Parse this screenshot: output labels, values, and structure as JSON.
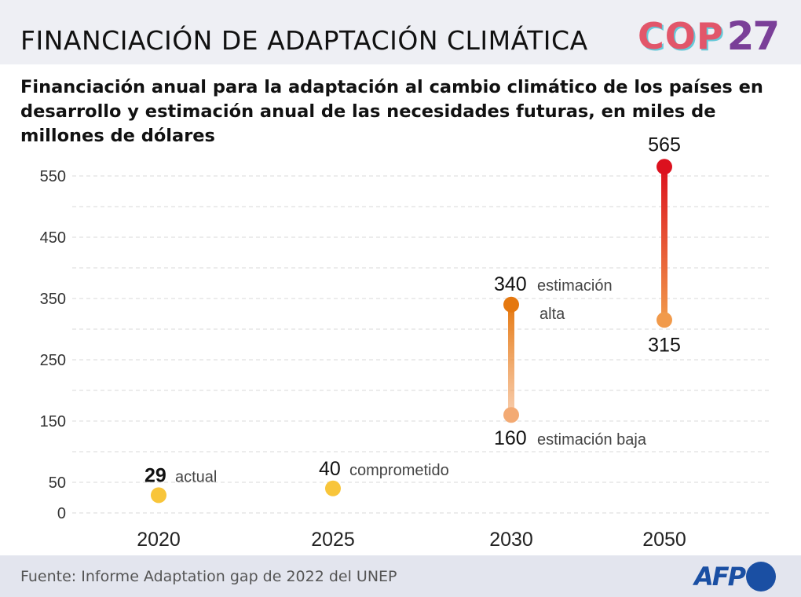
{
  "header": {
    "title": "FINANCIACIÓN DE ADAPTACIÓN CLIMÁTICA",
    "logo_text": "COP",
    "logo_number": "27"
  },
  "subtitle": "Financiación anual para la adaptación al cambio climático de los países en desarrollo y estimación anual de las necesidades futuras, en miles de millones de dólares",
  "footer": {
    "source": "Fuente: Informe Adaptation gap de 2022 del UNEP",
    "logo_text": "AFP"
  },
  "chart_data": {
    "type": "dot-range",
    "categories": [
      "2020",
      "2025",
      "2030",
      "2050"
    ],
    "y_ticks": [
      "0",
      "50",
      "150",
      "250",
      "350",
      "450",
      "550"
    ],
    "ylim": [
      0,
      565
    ],
    "grid": true,
    "points": [
      {
        "category": "2020",
        "value": 29,
        "label": "29",
        "note": "actual",
        "color": "#f8c53a",
        "bold": true
      },
      {
        "category": "2025",
        "value": 40,
        "label": "40",
        "note": "comprometido",
        "color": "#f8c53a"
      }
    ],
    "ranges": [
      {
        "category": "2030",
        "low": 160,
        "high": 340,
        "low_label": "160",
        "high_label": "340",
        "low_note": "estimación baja",
        "high_note": "estimación",
        "high_note2": "alta",
        "low_color": "#f3aa73",
        "high_color": "#e5780f"
      },
      {
        "category": "2050",
        "low": 315,
        "high": 565,
        "low_label": "315",
        "high_label": "565",
        "low_color": "#f19a4b",
        "high_color": "#dc111e"
      }
    ]
  }
}
